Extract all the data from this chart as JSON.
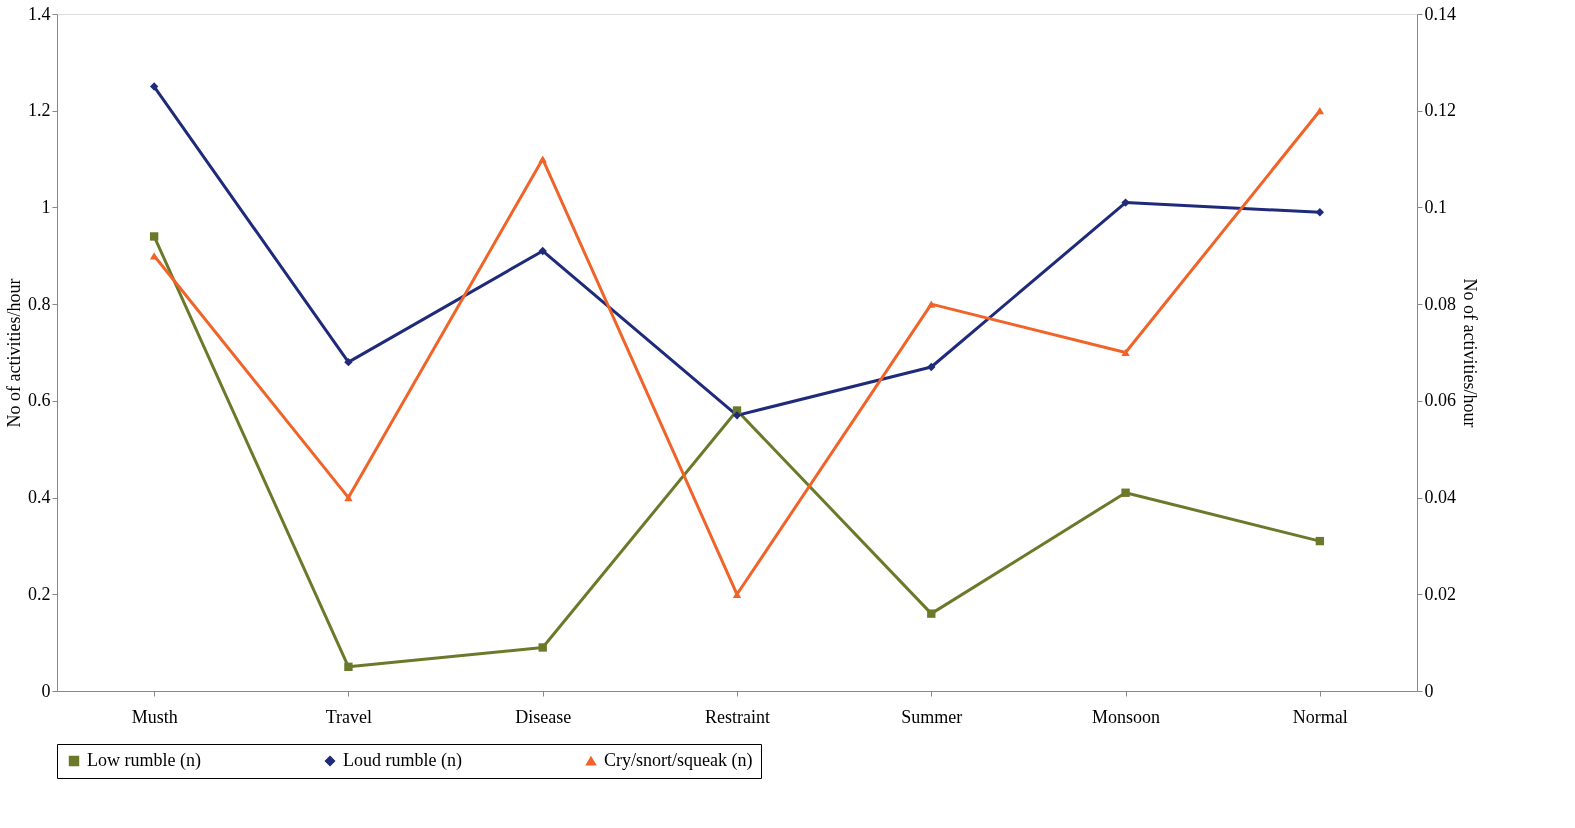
{
  "chart_data": {
    "type": "line",
    "ylabel": "No of activities/hour",
    "y2label": "No of activities/hour",
    "categories": [
      "Musth",
      "Travel",
      "Disease",
      "Restraint",
      "Summer",
      "Monsoon",
      "Normal"
    ],
    "series": [
      {
        "name": "Low rumble (n)",
        "color": "#6b7a2a",
        "marker": "square",
        "values": [
          0.94,
          0.05,
          0.09,
          0.58,
          0.16,
          0.41,
          0.31
        ]
      },
      {
        "name": "Loud rumble (n)",
        "color": "#1f2a7a",
        "marker": "diamond",
        "values": [
          1.25,
          0.68,
          0.91,
          0.57,
          0.67,
          1.01,
          0.99
        ]
      },
      {
        "name": "Cry/snort/squeak (n)",
        "color": "#f0642a",
        "marker": "triangle",
        "axis": "y2",
        "values": [
          0.09,
          0.04,
          0.11,
          0.02,
          0.08,
          0.07,
          0.12
        ]
      }
    ],
    "ylim": [
      0,
      1.4
    ],
    "yticks": [
      0,
      0.2,
      0.4,
      0.6,
      0.8,
      1,
      1.2,
      1.4
    ],
    "y2lim": [
      0,
      0.14
    ],
    "y2ticks": [
      0,
      0.02,
      0.04,
      0.06,
      0.08,
      0.1,
      0.12,
      0.14
    ],
    "grid": false,
    "legend": "bottom",
    "line_style": "solid"
  }
}
